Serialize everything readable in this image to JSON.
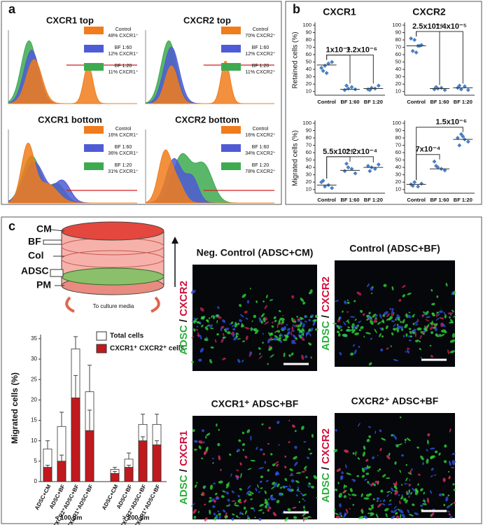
{
  "panel_labels": [
    "a",
    "b",
    "c"
  ],
  "chart_data": [
    {
      "type": "density",
      "title": "CXCR1 top",
      "series": [
        {
          "name": "Control",
          "label": "48% CXCR1⁺",
          "color": "#f07c1c"
        },
        {
          "name": "BF 1:60",
          "label": "12% CXCR1⁺",
          "color": "#4f5bd5"
        },
        {
          "name": "BF 1:20",
          "label": "11% CXCR1⁺",
          "color": "#3daa4f"
        }
      ]
    },
    {
      "type": "density",
      "title": "CXCR2 top",
      "series": [
        {
          "name": "Control",
          "label": "70% CXCR2⁺",
          "color": "#f07c1c"
        },
        {
          "name": "BF 1:60",
          "label": "12% CXCR2⁺",
          "color": "#4f5bd5"
        },
        {
          "name": "BF 1:20",
          "label": "11% CXCR2⁺",
          "color": "#3daa4f"
        }
      ]
    },
    {
      "type": "density",
      "title": "CXCR1 bottom",
      "series": [
        {
          "name": "Control",
          "label": "16% CXCR1⁺",
          "color": "#f07c1c"
        },
        {
          "name": "BF 1:60",
          "label": "36% CXCR1⁺",
          "color": "#4f5bd5"
        },
        {
          "name": "BF 1:20",
          "label": "31% CXCR1⁺",
          "color": "#3daa4f"
        }
      ]
    },
    {
      "type": "density",
      "title": "CXCR2 bottom",
      "series": [
        {
          "name": "Control",
          "label": "16% CXCR2⁺",
          "color": "#f07c1c"
        },
        {
          "name": "BF 1:60",
          "label": "34% CXCR2⁺",
          "color": "#4f5bd5"
        },
        {
          "name": "BF 1:20",
          "label": "78% CXCR2⁺",
          "color": "#3daa4f"
        }
      ]
    },
    {
      "type": "dotplot",
      "title": "CXCR1",
      "y_label": "Retained cells (%)",
      "color": "#4a80c4",
      "categories": [
        "Control",
        "BF 1:60",
        "BF 1:20"
      ],
      "points": [
        [
          42,
          45,
          48,
          50,
          38,
          35
        ],
        [
          12,
          14,
          16,
          13,
          18
        ],
        [
          13,
          15,
          14,
          18,
          12
        ]
      ],
      "medians": [
        46,
        13,
        14
      ],
      "annotations": [
        "1x10⁻⁴",
        "1.2x10⁻⁶"
      ],
      "ylim": [
        5,
        100
      ],
      "yticks": [
        10,
        20,
        30,
        40,
        50,
        60,
        70,
        80,
        90,
        100
      ]
    },
    {
      "type": "dotplot",
      "title": "CXCR2",
      "color": "#4a80c4",
      "categories": [
        "Control",
        "BF 1:60",
        "BF 1:20"
      ],
      "points": [
        [
          82,
          80,
          72,
          73,
          65,
          63,
          72
        ],
        [
          13,
          14,
          15,
          12,
          16
        ],
        [
          15,
          13,
          17,
          12,
          18
        ]
      ],
      "medians": [
        72,
        14,
        15
      ],
      "annotations": [
        "2.5x10⁻⁶",
        "1.4x10⁻⁵"
      ],
      "ylim": [
        5,
        100
      ],
      "yticks": [
        10,
        20,
        30,
        40,
        50,
        60,
        70,
        80,
        90,
        100
      ]
    },
    {
      "type": "dotplot",
      "y_label": "Migrated cells (%)",
      "color": "#4a80c4",
      "categories": [
        "Control",
        "BF 1:60",
        "BF 1:20"
      ],
      "points": [
        [
          20,
          14,
          16,
          12,
          22
        ],
        [
          35,
          40,
          38,
          32,
          45
        ],
        [
          42,
          40,
          38,
          44,
          35
        ]
      ],
      "medians": [
        16,
        36,
        40
      ],
      "annotations": [
        "5.5x10⁻⁶",
        "2.2x10⁻⁴"
      ],
      "ylim": [
        5,
        100
      ],
      "yticks": [
        10,
        20,
        30,
        40,
        50,
        60,
        70,
        80,
        90,
        100
      ]
    },
    {
      "type": "dotplot",
      "color": "#4a80c4",
      "categories": [
        "Control",
        "BF 1:60",
        "BF 1:20"
      ],
      "points": [
        [
          17,
          20,
          14,
          18,
          15
        ],
        [
          48,
          40,
          38,
          36,
          42
        ],
        [
          80,
          85,
          78,
          75,
          70,
          82
        ]
      ],
      "medians": [
        17,
        38,
        78
      ],
      "annotations": [
        "7x10⁻⁴",
        "1.5x10⁻⁶"
      ],
      "ylim": [
        5,
        100
      ],
      "yticks": [
        10,
        20,
        30,
        40,
        50,
        60,
        70,
        80,
        90,
        100
      ]
    },
    {
      "type": "bar",
      "y_label": "Migrated cells (%)",
      "categories": [
        "ADSC+CM",
        "ADSC+BF",
        "CXCR2⁺ADSC+BF",
        "CXCR1⁺ADSC+BF",
        "ADSC+CM",
        "ADSC+BF",
        "CXCR2⁺ADSC+BF",
        "CXCR1⁺ADSC+BF"
      ],
      "group_labels": [
        "< 100 μm",
        "> 200 μm"
      ],
      "series": [
        {
          "name": "Total cells",
          "color": "#ffffff",
          "values": [
            8,
            13.5,
            32.5,
            22,
            3,
            5.5,
            14,
            14
          ],
          "errors": [
            2,
            3.5,
            3,
            6.5,
            0.5,
            1.5,
            2.5,
            2.5
          ]
        },
        {
          "name": "CXCR1⁺ CXCR2⁺ cells",
          "color": "#c0191e",
          "values": [
            3.5,
            5,
            20.5,
            12.5,
            2,
            3.5,
            10,
            9
          ],
          "errors": [
            0.5,
            1.5,
            5.5,
            5,
            0.5,
            0.5,
            1,
            1
          ]
        }
      ],
      "ylim": [
        0,
        36
      ],
      "yticks": [
        0,
        5,
        10,
        15,
        20,
        25,
        30,
        35
      ]
    }
  ],
  "diagram": {
    "labels": [
      "CM",
      "BF",
      "Col",
      "ADSC",
      "PM"
    ],
    "caption": "To culture media"
  },
  "images": [
    {
      "title": "Neg. Control (ADSC+CM)",
      "marker_green": "ADSC",
      "separator": " / ",
      "marker_red": "CXCR2"
    },
    {
      "title": "Control (ADSC+BF)",
      "marker_green": "ADSC",
      "separator": " / ",
      "marker_red": "CXCR2"
    },
    {
      "title": "CXCR1⁺ ADSC+BF",
      "marker_green": "ADSC",
      "separator": " / ",
      "marker_red": "CXCR1"
    },
    {
      "title": "CXCR2⁺ ADSC+BF",
      "marker_green": "ADSC",
      "separator": " / ",
      "marker_red": "CXCR2"
    }
  ]
}
